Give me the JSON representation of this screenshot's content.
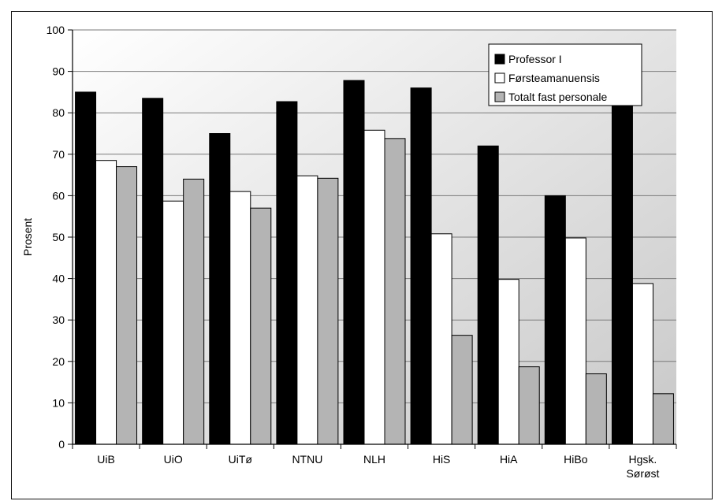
{
  "chart_data": {
    "type": "bar",
    "title": "",
    "xlabel": "",
    "ylabel": "Prosent",
    "ylim": [
      0,
      100
    ],
    "yticks": [
      0,
      10,
      20,
      30,
      40,
      50,
      60,
      70,
      80,
      90,
      100
    ],
    "grid": true,
    "legend_position": "top-right",
    "categories": [
      "UiB",
      "UiO",
      "UiTø",
      "NTNU",
      "NLH",
      "HiS",
      "HiA",
      "HiBo",
      "Hgsk. Sørøst"
    ],
    "series": [
      {
        "name": "Professor I",
        "color": "#000000",
        "values": [
          85,
          83.5,
          75,
          82.7,
          87.8,
          86,
          72,
          60,
          84.3
        ]
      },
      {
        "name": "Førsteamanuensis",
        "color": "#ffffff",
        "values": [
          68.5,
          58.7,
          61,
          64.8,
          75.8,
          50.8,
          39.8,
          49.8,
          38.8
        ]
      },
      {
        "name": "Totalt fast personale",
        "color": "#b4b4b4",
        "values": [
          67,
          64,
          57,
          64.2,
          73.8,
          26.3,
          18.7,
          17,
          12.2
        ]
      }
    ]
  }
}
